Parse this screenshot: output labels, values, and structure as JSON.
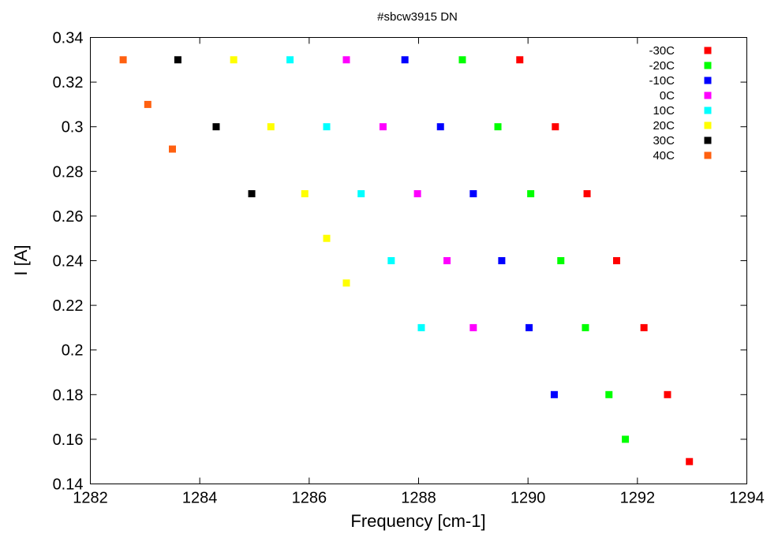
{
  "chart_data": {
    "type": "scatter",
    "title": "#sbcw3915 DN",
    "xlabel": "Frequency [cm-1]",
    "ylabel": "I [A]",
    "xlim": [
      1282,
      1294
    ],
    "ylim": [
      0.14,
      0.34
    ],
    "xticks": [
      1282,
      1284,
      1286,
      1288,
      1290,
      1292,
      1294
    ],
    "yticks": [
      0.14,
      0.16,
      0.18,
      0.2,
      0.22,
      0.24,
      0.26,
      0.28,
      0.3,
      0.32,
      0.34
    ],
    "xtick_labels": [
      "1282",
      "1284",
      "1286",
      "1288",
      "1290",
      "1292",
      "1294"
    ],
    "ytick_labels": [
      "0.14",
      "0.16",
      "0.18",
      "0.2",
      "0.22",
      "0.24",
      "0.26",
      "0.28",
      "0.3",
      "0.32",
      "0.34"
    ],
    "grid": false,
    "legend_position": "top-right",
    "series": [
      {
        "name": "-30C",
        "color": "#ff0000",
        "points": [
          [
            1289.85,
            0.33
          ],
          [
            1290.5,
            0.3
          ],
          [
            1291.08,
            0.27
          ],
          [
            1291.62,
            0.24
          ],
          [
            1292.12,
            0.21
          ],
          [
            1292.55,
            0.18
          ],
          [
            1292.95,
            0.15
          ]
        ]
      },
      {
        "name": "-20C",
        "color": "#00ff00",
        "points": [
          [
            1288.8,
            0.33
          ],
          [
            1289.45,
            0.3
          ],
          [
            1290.05,
            0.27
          ],
          [
            1290.6,
            0.24
          ],
          [
            1291.05,
            0.21
          ],
          [
            1291.48,
            0.18
          ],
          [
            1291.78,
            0.16
          ]
        ]
      },
      {
        "name": "-10C",
        "color": "#0000ff",
        "points": [
          [
            1287.75,
            0.33
          ],
          [
            1288.4,
            0.3
          ],
          [
            1289.0,
            0.27
          ],
          [
            1289.52,
            0.24
          ],
          [
            1290.02,
            0.21
          ],
          [
            1290.48,
            0.18
          ]
        ]
      },
      {
        "name": "0C",
        "color": "#ff00ff",
        "points": [
          [
            1286.68,
            0.33
          ],
          [
            1287.35,
            0.3
          ],
          [
            1287.98,
            0.27
          ],
          [
            1288.52,
            0.24
          ],
          [
            1289.0,
            0.21
          ]
        ]
      },
      {
        "name": "10C",
        "color": "#00ffff",
        "points": [
          [
            1285.65,
            0.33
          ],
          [
            1286.32,
            0.3
          ],
          [
            1286.95,
            0.27
          ],
          [
            1287.5,
            0.24
          ],
          [
            1288.05,
            0.21
          ]
        ]
      },
      {
        "name": "20C",
        "color": "#ffff00",
        "points": [
          [
            1284.62,
            0.33
          ],
          [
            1285.3,
            0.3
          ],
          [
            1285.92,
            0.27
          ],
          [
            1286.32,
            0.25
          ],
          [
            1286.68,
            0.23
          ]
        ]
      },
      {
        "name": "30C",
        "color": "#000000",
        "points": [
          [
            1283.6,
            0.33
          ],
          [
            1284.3,
            0.3
          ],
          [
            1284.95,
            0.27
          ]
        ]
      },
      {
        "name": "40C",
        "color": "#ff6010",
        "points": [
          [
            1282.6,
            0.33
          ],
          [
            1283.05,
            0.31
          ],
          [
            1283.5,
            0.29
          ]
        ]
      }
    ]
  }
}
